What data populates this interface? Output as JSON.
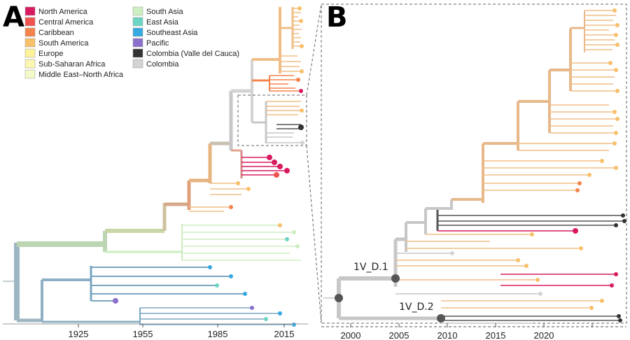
{
  "panels": [
    {
      "letter": "A"
    },
    {
      "letter": "B"
    }
  ],
  "legend": {
    "column_1": [
      {
        "label": "North America",
        "color": "#d81b60"
      },
      {
        "label": "Central America",
        "color": "#ef5350"
      },
      {
        "label": "Caribbean",
        "color": "#f4844c"
      },
      {
        "label": "South America",
        "color": "#f8c06a"
      },
      {
        "label": "Europe",
        "color": "#fdf29a"
      },
      {
        "label": "Sub-Saharan Africa",
        "color": "#fbf6b0"
      },
      {
        "label": "Middle East–North Africa",
        "color": "#f4f7c8"
      }
    ],
    "column_2": [
      {
        "label": "South Asia",
        "color": "#cdeec0"
      },
      {
        "label": "East Asia",
        "color": "#6cd5c3"
      },
      {
        "label": "Southeast Asia",
        "color": "#36a9e1"
      },
      {
        "label": "Pacific",
        "color": "#8a6fcb"
      },
      {
        "label": "Colombia (Valle del Cauca)",
        "color": "#333333"
      },
      {
        "label": "Colombia",
        "color": "#d3d3d3"
      }
    ]
  },
  "panel_a_axis": {
    "ticks": [
      "1925",
      "1955",
      "1985",
      "2015"
    ]
  },
  "panel_b_axis": {
    "ticks": [
      "2000",
      "2005",
      "2010",
      "2015",
      "2020"
    ]
  },
  "node_labels": [
    "1V_D.1",
    "1V_D.2"
  ]
}
